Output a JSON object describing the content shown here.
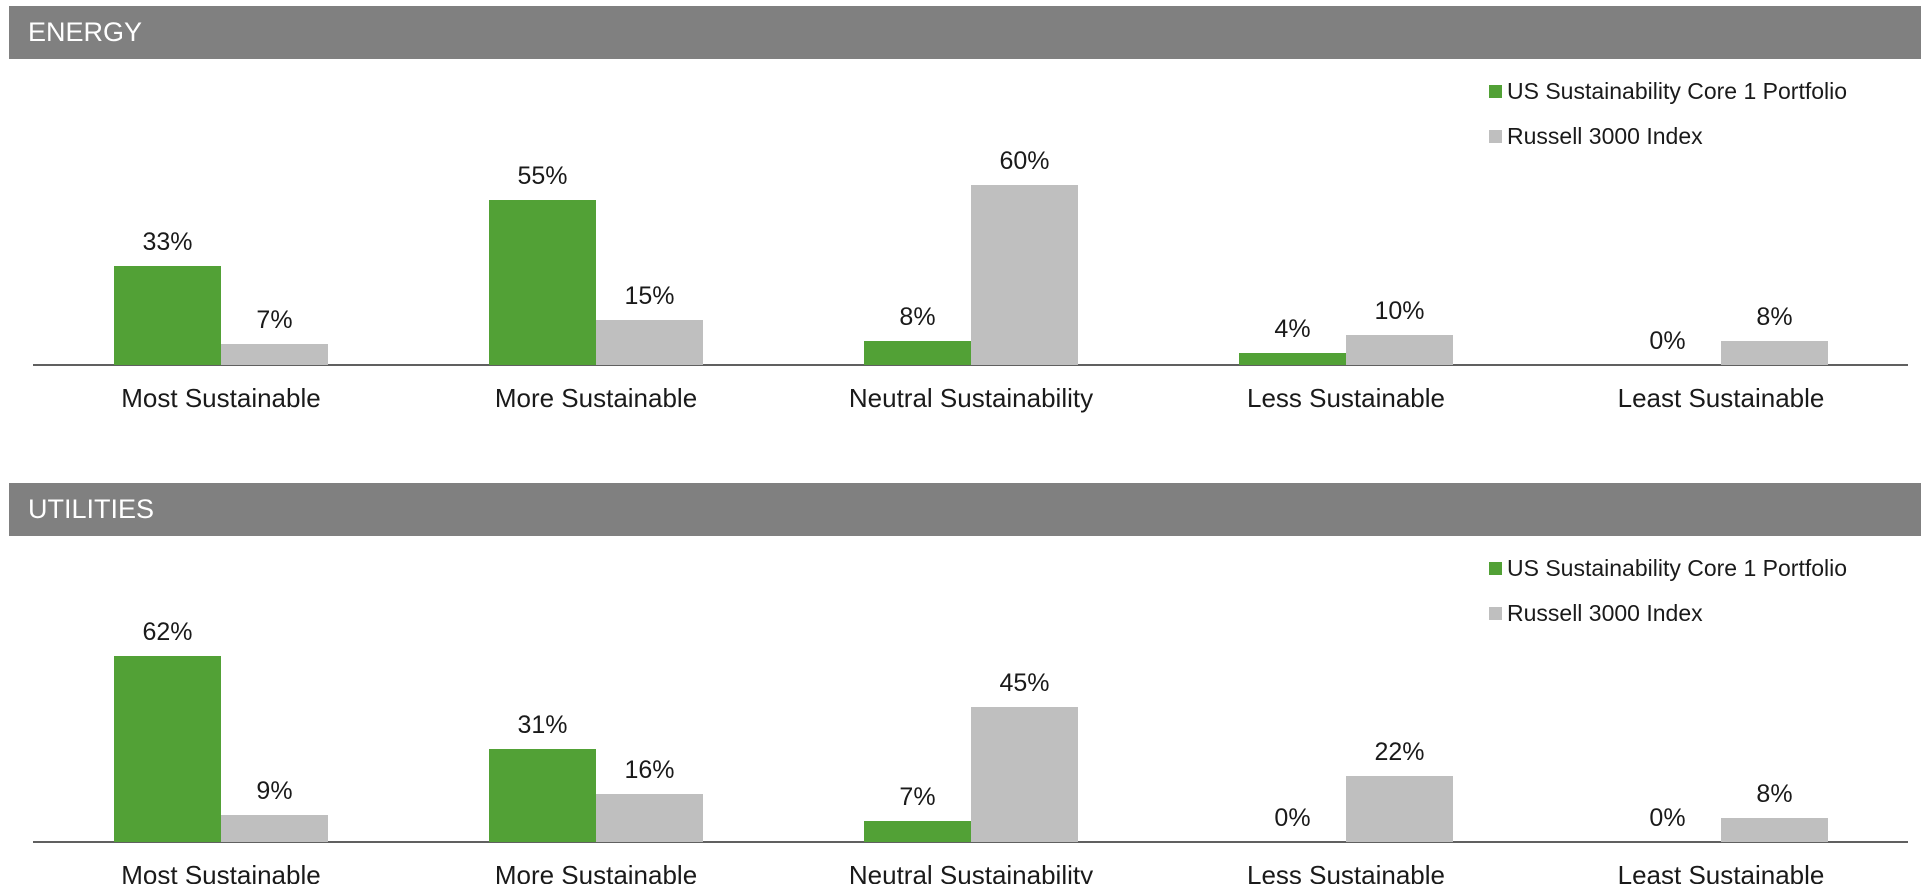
{
  "charts": [
    {
      "section": "ENERGY",
      "chart_data": {
        "type": "bar",
        "categories": [
          "Most Sustainable",
          "More Sustainable",
          "Neutral Sustainability",
          "Less Sustainable",
          "Least Sustainable"
        ],
        "series": [
          {
            "name": "US Sustainability Core 1 Portfolio",
            "color": "#52a136",
            "values": [
              33,
              55,
              8,
              4,
              0
            ]
          },
          {
            "name": "Russell 3000 Index",
            "color": "#bfbfbf",
            "values": [
              7,
              15,
              60,
              10,
              8
            ]
          }
        ],
        "value_suffix": "%",
        "ylim": [
          0,
          70
        ],
        "legend": "top-right",
        "grid": false
      }
    },
    {
      "section": "UTILITIES",
      "chart_data": {
        "type": "bar",
        "categories": [
          "Most Sustainable",
          "More Sustainable",
          "Neutral Sustainability",
          "Less Sustainable",
          "Least Sustainable"
        ],
        "series": [
          {
            "name": "US Sustainability Core 1 Portfolio",
            "color": "#52a136",
            "values": [
              62,
              31,
              7,
              0,
              0
            ]
          },
          {
            "name": "Russell 3000 Index",
            "color": "#bfbfbf",
            "values": [
              9,
              16,
              45,
              22,
              8
            ]
          }
        ],
        "value_suffix": "%",
        "ylim": [
          0,
          70
        ],
        "legend": "top-right",
        "grid": false
      }
    }
  ]
}
